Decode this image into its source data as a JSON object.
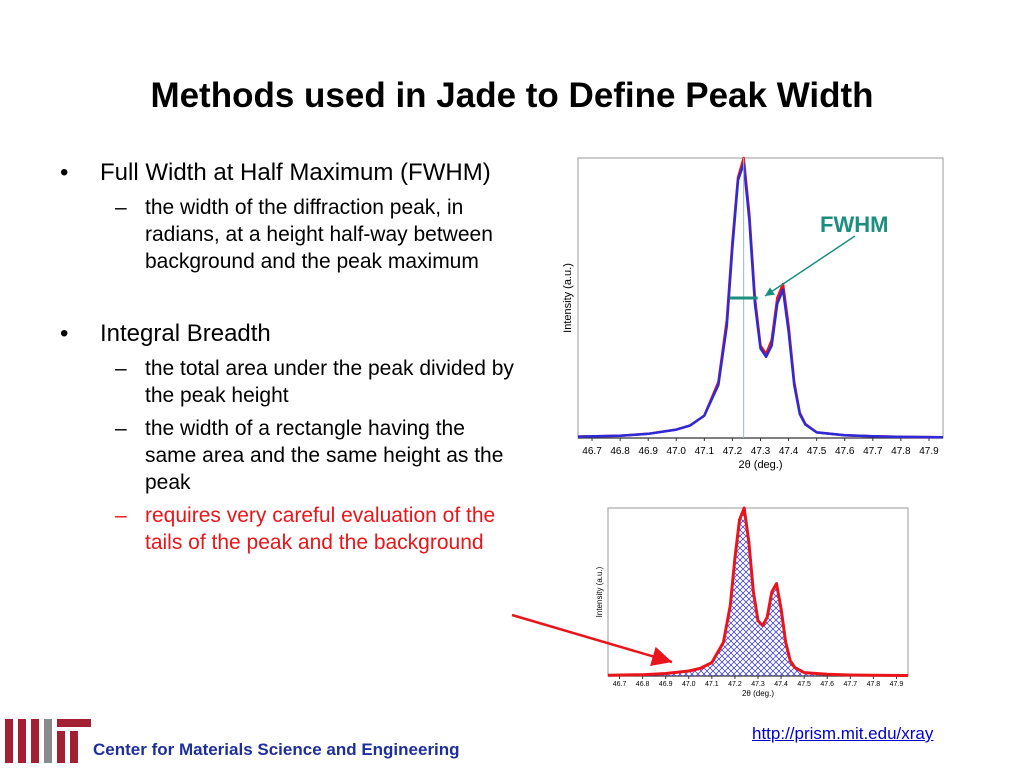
{
  "slide": {
    "title": "Methods used in Jade to Define Peak Width",
    "bullets": [
      {
        "text": "Full Width at Half Maximum (FWHM)",
        "subs": [
          {
            "text": "the width of the diffraction peak, in radians, at a height half-way between background and the peak maximum",
            "red": false
          }
        ]
      },
      {
        "text": "Integral Breadth",
        "subs": [
          {
            "text": "the total area under the peak divided by the peak height",
            "red": false
          },
          {
            "text": "the width of a rectangle having the same area and the same height as the peak",
            "red": false
          },
          {
            "text": "requires very careful evaluation of the tails of the peak and the background",
            "red": true
          }
        ]
      }
    ],
    "bullet_glyph": "•",
    "dash_glyph": "–",
    "annotation": {
      "fwhm_label": "FWHM"
    },
    "footer": {
      "link": "http://prism.mit.edu/xray",
      "org": "Center for Materials Science and Engineering"
    },
    "colors": {
      "accent_red": "#e8161b",
      "fwhm_teal": "#1a8f7f",
      "footer_blue": "#1f2f9a",
      "logo_red": "#a31f34"
    }
  },
  "chart_data": [
    {
      "type": "line",
      "xlabel": "2θ (deg.)",
      "ylabel": "Intensity (a.u.)",
      "categories": [
        "46.7",
        "46.8",
        "46.9",
        "47.0",
        "47.1",
        "47.2",
        "47.3",
        "47.4",
        "47.5",
        "47.6",
        "47.7",
        "47.8",
        "47.9"
      ],
      "xlim": [
        46.65,
        47.95
      ],
      "ylim": [
        0,
        1.0
      ],
      "grid": false,
      "series": [
        {
          "color": "#e8161b",
          "x": [
            46.65,
            46.8,
            46.9,
            47.0,
            47.05,
            47.1,
            47.15,
            47.18,
            47.2,
            47.22,
            47.24,
            47.26,
            47.28,
            47.3,
            47.32,
            47.34,
            47.36,
            47.38,
            47.4,
            47.42,
            47.44,
            47.46,
            47.5,
            47.6,
            47.7,
            47.8,
            47.95
          ],
          "y": [
            0.005,
            0.008,
            0.015,
            0.03,
            0.045,
            0.08,
            0.2,
            0.42,
            0.7,
            0.93,
            1.0,
            0.8,
            0.5,
            0.33,
            0.3,
            0.35,
            0.5,
            0.55,
            0.4,
            0.2,
            0.09,
            0.05,
            0.02,
            0.01,
            0.006,
            0.004,
            0.003
          ]
        },
        {
          "color": "#2b2bd9",
          "x": [
            46.65,
            46.8,
            46.9,
            47.0,
            47.05,
            47.1,
            47.15,
            47.18,
            47.2,
            47.22,
            47.24,
            47.26,
            47.28,
            47.3,
            47.32,
            47.34,
            47.36,
            47.38,
            47.4,
            47.42,
            47.44,
            47.46,
            47.5,
            47.6,
            47.7,
            47.8,
            47.95
          ],
          "y": [
            0.005,
            0.008,
            0.015,
            0.03,
            0.045,
            0.08,
            0.19,
            0.4,
            0.68,
            0.92,
            0.98,
            0.78,
            0.48,
            0.32,
            0.29,
            0.33,
            0.48,
            0.53,
            0.38,
            0.19,
            0.085,
            0.048,
            0.02,
            0.01,
            0.006,
            0.004,
            0.003
          ]
        }
      ]
    },
    {
      "type": "area",
      "xlabel": "2θ (deg.)",
      "ylabel": "Intensity (a.u.)",
      "categories": [
        "46.7",
        "46.8",
        "46.9",
        "47.0",
        "47.1",
        "47.2",
        "47.3",
        "47.4",
        "47.5",
        "47.6",
        "47.7",
        "47.8",
        "47.9"
      ],
      "xlim": [
        46.65,
        47.95
      ],
      "ylim": [
        0,
        1.0
      ],
      "grid": false,
      "series": [
        {
          "color": "#e8161b",
          "fill": "#2b2bd9",
          "x": [
            46.65,
            46.8,
            46.9,
            47.0,
            47.05,
            47.1,
            47.15,
            47.18,
            47.2,
            47.22,
            47.24,
            47.26,
            47.28,
            47.3,
            47.32,
            47.34,
            47.36,
            47.38,
            47.4,
            47.42,
            47.44,
            47.46,
            47.5,
            47.6,
            47.7,
            47.8,
            47.95
          ],
          "y": [
            0.005,
            0.008,
            0.015,
            0.03,
            0.045,
            0.08,
            0.2,
            0.42,
            0.7,
            0.93,
            1.0,
            0.8,
            0.5,
            0.33,
            0.3,
            0.35,
            0.5,
            0.55,
            0.4,
            0.2,
            0.09,
            0.05,
            0.02,
            0.01,
            0.006,
            0.004,
            0.003
          ]
        }
      ]
    }
  ]
}
